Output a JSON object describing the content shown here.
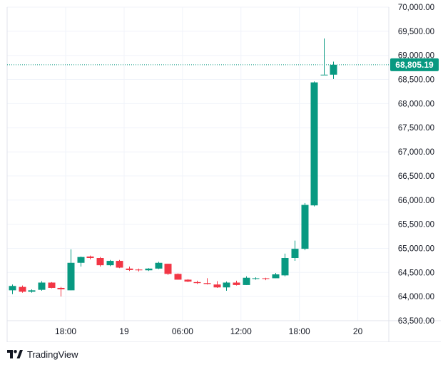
{
  "colors": {
    "up": "#089981",
    "down": "#f23645",
    "grid": "#f0f3fa",
    "axis": "#e0e3eb",
    "last_price_line": "#089981",
    "text": "#131722"
  },
  "branding": {
    "name": "TradingView"
  },
  "chart_data": {
    "type": "candlestick",
    "ylim": [
      63500,
      70000
    ],
    "yticks": [
      63500,
      64000,
      64500,
      65000,
      65500,
      66000,
      66500,
      67000,
      67500,
      68000,
      68500,
      69000,
      69500,
      70000
    ],
    "ytick_labels": [
      "63,500.00",
      "64,000.00",
      "64,500.00",
      "65,000.00",
      "65,500.00",
      "66,000.00",
      "66,500.00",
      "67,000.00",
      "67,500.00",
      "68,000.00",
      "68,500.00",
      "69,000.00",
      "69,500.00",
      "70,000.00"
    ],
    "xticks": [
      {
        "label": "18:00",
        "index": 5.5
      },
      {
        "label": "19",
        "index": 11.5
      },
      {
        "label": "06:00",
        "index": 17.5
      },
      {
        "label": "12:00",
        "index": 23.5
      },
      {
        "label": "18:00",
        "index": 29.5
      },
      {
        "label": "20",
        "index": 35.5
      }
    ],
    "last_price": 68805.19,
    "last_price_label": "68,805.19",
    "candles": [
      {
        "o": 64130,
        "h": 64250,
        "l": 64050,
        "c": 64220
      },
      {
        "o": 64200,
        "h": 64230,
        "l": 64080,
        "c": 64100
      },
      {
        "o": 64100,
        "h": 64150,
        "l": 64080,
        "c": 64130
      },
      {
        "o": 64140,
        "h": 64320,
        "l": 64120,
        "c": 64290
      },
      {
        "o": 64290,
        "h": 64300,
        "l": 64170,
        "c": 64180
      },
      {
        "o": 64180,
        "h": 64200,
        "l": 64000,
        "c": 64150
      },
      {
        "o": 64130,
        "h": 64980,
        "l": 64130,
        "c": 64700
      },
      {
        "o": 64700,
        "h": 64830,
        "l": 64620,
        "c": 64820
      },
      {
        "o": 64830,
        "h": 64850,
        "l": 64770,
        "c": 64800
      },
      {
        "o": 64800,
        "h": 64820,
        "l": 64620,
        "c": 64650
      },
      {
        "o": 64650,
        "h": 64760,
        "l": 64630,
        "c": 64740
      },
      {
        "o": 64740,
        "h": 64760,
        "l": 64590,
        "c": 64600
      },
      {
        "o": 64580,
        "h": 64620,
        "l": 64530,
        "c": 64550
      },
      {
        "o": 64560,
        "h": 64580,
        "l": 64520,
        "c": 64545
      },
      {
        "o": 64545,
        "h": 64590,
        "l": 64530,
        "c": 64580
      },
      {
        "o": 64580,
        "h": 64720,
        "l": 64570,
        "c": 64700
      },
      {
        "o": 64680,
        "h": 64680,
        "l": 64450,
        "c": 64470
      },
      {
        "o": 64470,
        "h": 64480,
        "l": 64350,
        "c": 64350
      },
      {
        "o": 64350,
        "h": 64360,
        "l": 64300,
        "c": 64310
      },
      {
        "o": 64300,
        "h": 64330,
        "l": 64260,
        "c": 64280
      },
      {
        "o": 64280,
        "h": 64380,
        "l": 64250,
        "c": 64260
      },
      {
        "o": 64250,
        "h": 64320,
        "l": 64180,
        "c": 64190
      },
      {
        "o": 64190,
        "h": 64310,
        "l": 64120,
        "c": 64290
      },
      {
        "o": 64290,
        "h": 64330,
        "l": 64230,
        "c": 64240
      },
      {
        "o": 64240,
        "h": 64420,
        "l": 64240,
        "c": 64390
      },
      {
        "o": 64380,
        "h": 64400,
        "l": 64350,
        "c": 64380
      },
      {
        "o": 64380,
        "h": 64390,
        "l": 64340,
        "c": 64370
      },
      {
        "o": 64380,
        "h": 64490,
        "l": 64380,
        "c": 64460
      },
      {
        "o": 64440,
        "h": 64890,
        "l": 64420,
        "c": 64800
      },
      {
        "o": 64800,
        "h": 65160,
        "l": 64740,
        "c": 64990
      },
      {
        "o": 64990,
        "h": 65940,
        "l": 64960,
        "c": 65900
      },
      {
        "o": 65890,
        "h": 68460,
        "l": 65870,
        "c": 68440
      },
      {
        "o": 68600,
        "h": 69350,
        "l": 68600,
        "c": 68600
      },
      {
        "o": 68600,
        "h": 68870,
        "l": 68510,
        "c": 68805.19
      }
    ]
  }
}
